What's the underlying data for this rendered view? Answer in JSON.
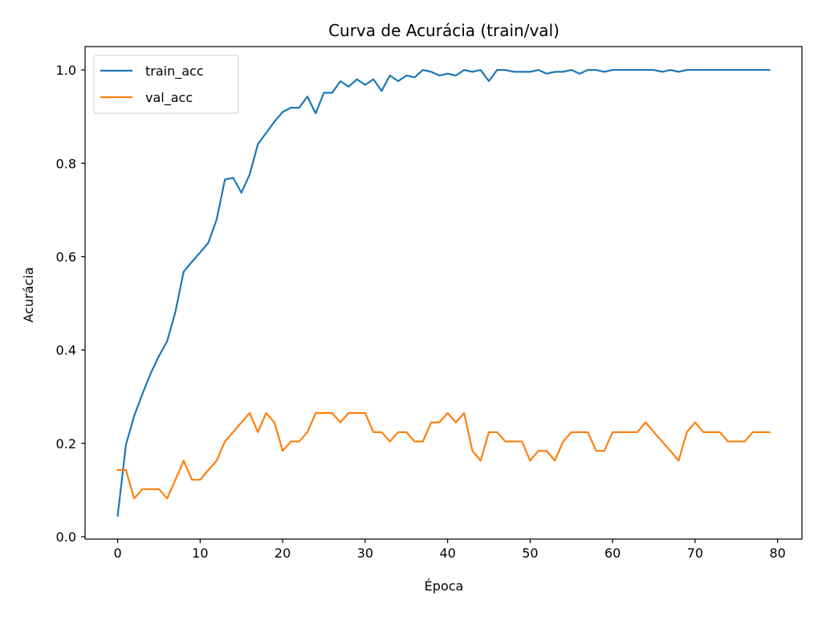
{
  "chart_data": {
    "type": "line",
    "title": "Curva de Acurácia (train/val)",
    "xlabel": "Época",
    "ylabel": "Acurácia",
    "xlim": [
      -3.95,
      82.95
    ],
    "ylim": [
      -0.005,
      1.05
    ],
    "xticks": [
      0,
      10,
      20,
      30,
      40,
      50,
      60,
      70,
      80
    ],
    "xtick_labels": [
      "0",
      "10",
      "20",
      "30",
      "40",
      "50",
      "60",
      "70",
      "80"
    ],
    "yticks": [
      0.0,
      0.2,
      0.4,
      0.6,
      0.8,
      1.0
    ],
    "ytick_labels": [
      "0.0",
      "0.2",
      "0.4",
      "0.6",
      "0.8",
      "1.0"
    ],
    "grid": false,
    "legend_position": "upper left",
    "x": [
      0,
      1,
      2,
      3,
      4,
      5,
      6,
      7,
      8,
      9,
      10,
      11,
      12,
      13,
      14,
      15,
      16,
      17,
      18,
      19,
      20,
      21,
      22,
      23,
      24,
      25,
      26,
      27,
      28,
      29,
      30,
      31,
      32,
      33,
      34,
      35,
      36,
      37,
      38,
      39,
      40,
      41,
      42,
      43,
      44,
      45,
      46,
      47,
      48,
      49,
      50,
      51,
      52,
      53,
      54,
      55,
      56,
      57,
      58,
      59,
      60,
      61,
      62,
      63,
      64,
      65,
      66,
      67,
      68,
      69,
      70,
      71,
      72,
      73,
      74,
      75,
      76,
      77,
      78,
      79
    ],
    "series": [
      {
        "name": "train_acc",
        "color": "#1f77b4",
        "values": [
          0.045,
          0.197,
          0.259,
          0.306,
          0.35,
          0.387,
          0.419,
          0.482,
          0.568,
          0.589,
          0.609,
          0.63,
          0.68,
          0.765,
          0.769,
          0.737,
          0.776,
          0.841,
          0.865,
          0.889,
          0.91,
          0.919,
          0.919,
          0.943,
          0.907,
          0.951,
          0.951,
          0.976,
          0.964,
          0.98,
          0.968,
          0.98,
          0.955,
          0.988,
          0.976,
          0.988,
          0.984,
          1.0,
          0.996,
          0.988,
          0.992,
          0.988,
          1.0,
          0.996,
          1.0,
          0.976,
          1.0,
          1.0,
          0.996,
          0.996,
          0.996,
          1.0,
          0.992,
          0.996,
          0.996,
          1.0,
          0.992,
          1.0,
          1.0,
          0.996,
          1.0,
          1.0,
          1.0,
          1.0,
          1.0,
          1.0,
          0.996,
          1.0,
          0.996,
          1.0,
          1.0,
          1.0,
          1.0,
          1.0,
          1.0,
          1.0,
          1.0,
          1.0,
          1.0,
          1.0
        ]
      },
      {
        "name": "val_acc",
        "color": "#ff7f0e",
        "values": [
          0.143,
          0.143,
          0.082,
          0.102,
          0.102,
          0.102,
          0.082,
          0.122,
          0.163,
          0.122,
          0.122,
          0.143,
          0.163,
          0.204,
          0.224,
          0.245,
          0.265,
          0.224,
          0.265,
          0.245,
          0.184,
          0.204,
          0.204,
          0.224,
          0.265,
          0.265,
          0.265,
          0.245,
          0.265,
          0.265,
          0.265,
          0.224,
          0.224,
          0.204,
          0.224,
          0.224,
          0.204,
          0.204,
          0.245,
          0.245,
          0.265,
          0.245,
          0.265,
          0.184,
          0.163,
          0.224,
          0.224,
          0.204,
          0.204,
          0.204,
          0.163,
          0.184,
          0.184,
          0.163,
          0.204,
          0.224,
          0.224,
          0.224,
          0.184,
          0.184,
          0.224,
          0.224,
          0.224,
          0.224,
          0.245,
          0.224,
          0.204,
          0.184,
          0.163,
          0.224,
          0.245,
          0.224,
          0.224,
          0.224,
          0.204,
          0.204,
          0.204,
          0.224,
          0.224,
          0.224
        ]
      }
    ]
  }
}
